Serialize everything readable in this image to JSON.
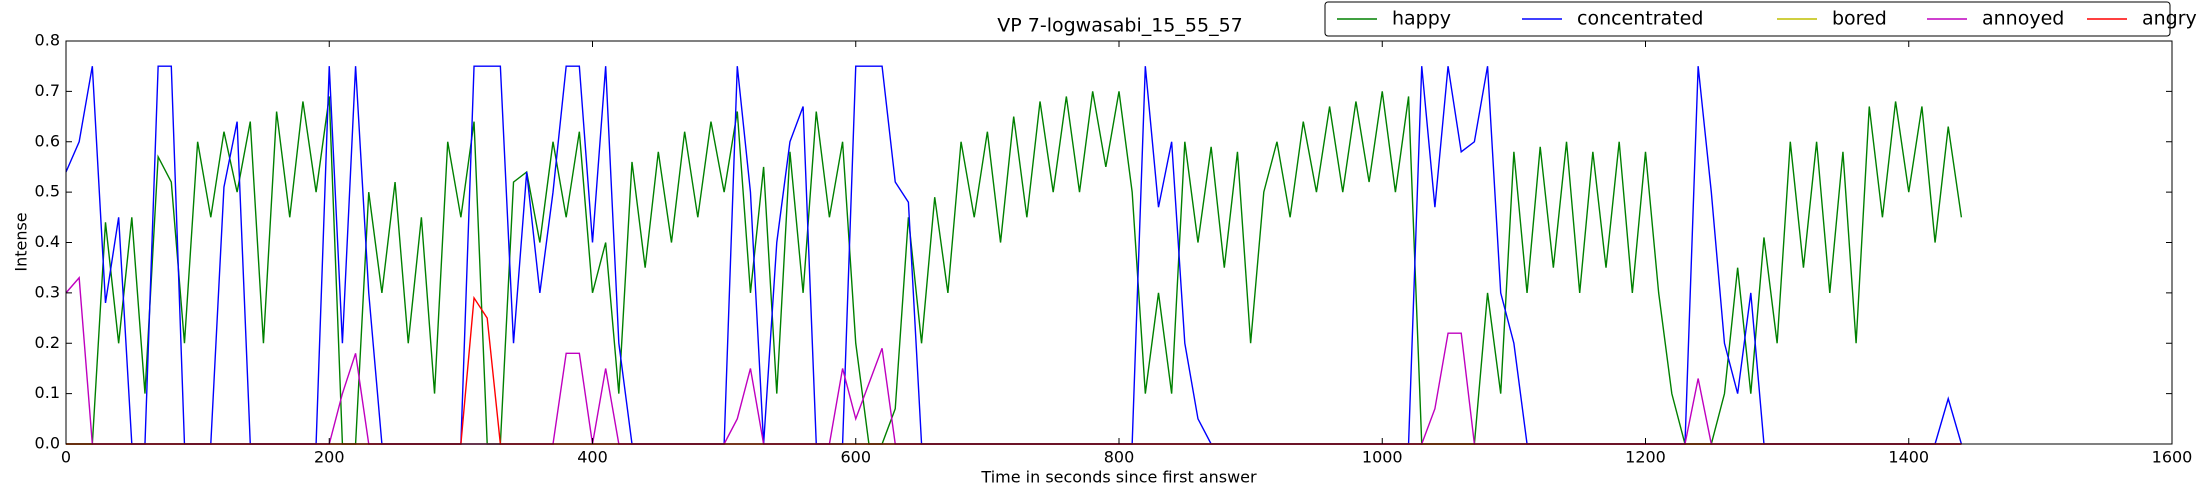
{
  "chart_data": {
    "type": "line",
    "title": "VP 7-logwasabi_15_55_57",
    "x_label": "Time in seconds since first answer",
    "y_label": "Intense",
    "x": [
      0,
      10,
      20,
      30,
      40,
      50,
      60,
      70,
      80,
      90,
      100,
      110,
      120,
      130,
      140,
      150,
      160,
      170,
      180,
      190,
      200,
      210,
      220,
      230,
      240,
      250,
      260,
      270,
      280,
      290,
      300,
      310,
      320,
      330,
      340,
      350,
      360,
      370,
      380,
      390,
      400,
      410,
      420,
      430,
      440,
      450,
      460,
      470,
      480,
      490,
      500,
      510,
      520,
      530,
      540,
      550,
      560,
      570,
      580,
      590,
      600,
      610,
      620,
      630,
      640,
      650,
      660,
      670,
      680,
      690,
      700,
      710,
      720,
      730,
      740,
      750,
      760,
      770,
      780,
      790,
      800,
      810,
      820,
      830,
      840,
      850,
      860,
      870,
      880,
      890,
      900,
      910,
      920,
      930,
      940,
      950,
      960,
      970,
      980,
      990,
      1000,
      1010,
      1020,
      1030,
      1040,
      1050,
      1060,
      1070,
      1080,
      1090,
      1100,
      1110,
      1120,
      1130,
      1140,
      1150,
      1160,
      1170,
      1180,
      1190,
      1200,
      1210,
      1220,
      1230,
      1240,
      1250,
      1260,
      1270,
      1280,
      1290,
      1300,
      1310,
      1320,
      1330,
      1340,
      1350,
      1360,
      1370,
      1380,
      1390,
      1400,
      1410,
      1420,
      1430,
      1440
    ],
    "series": [
      {
        "name": "happy",
        "color": "#008000",
        "values": [
          0,
          0,
          0,
          0.44,
          0.2,
          0.45,
          0.1,
          0.57,
          0.52,
          0.2,
          0.6,
          0.45,
          0.62,
          0.5,
          0.64,
          0.2,
          0.66,
          0.45,
          0.68,
          0.5,
          0.69,
          0,
          0,
          0.5,
          0.3,
          0.52,
          0.2,
          0.45,
          0.1,
          0.6,
          0.45,
          0.64,
          0,
          0,
          0.52,
          0.54,
          0.4,
          0.6,
          0.45,
          0.62,
          0.3,
          0.4,
          0.1,
          0.56,
          0.35,
          0.58,
          0.4,
          0.62,
          0.45,
          0.64,
          0.5,
          0.66,
          0.3,
          0.55,
          0.1,
          0.58,
          0.3,
          0.66,
          0.45,
          0.6,
          0.2,
          0,
          0,
          0.07,
          0.45,
          0.2,
          0.49,
          0.3,
          0.6,
          0.45,
          0.62,
          0.4,
          0.65,
          0.45,
          0.68,
          0.5,
          0.69,
          0.5,
          0.7,
          0.55,
          0.7,
          0.5,
          0.1,
          0.3,
          0.1,
          0.6,
          0.4,
          0.59,
          0.35,
          0.58,
          0.2,
          0.5,
          0.6,
          0.45,
          0.64,
          0.5,
          0.67,
          0.5,
          0.68,
          0.52,
          0.7,
          0.5,
          0.69,
          0,
          0,
          0,
          0,
          0,
          0.3,
          0.1,
          0.58,
          0.3,
          0.59,
          0.35,
          0.6,
          0.3,
          0.58,
          0.35,
          0.6,
          0.3,
          0.58,
          0.3,
          0.1,
          0,
          0,
          0,
          0.1,
          0.35,
          0.1,
          0.41,
          0.2,
          0.6,
          0.35,
          0.6,
          0.3,
          0.58,
          0.2,
          0.67,
          0.45,
          0.68,
          0.5,
          0.67,
          0.4,
          0.63,
          0.45
        ]
      },
      {
        "name": "concentrated",
        "color": "#0000ff",
        "values": [
          0.54,
          0.6,
          0.75,
          0.28,
          0.45,
          0,
          0,
          0.75,
          0.75,
          0,
          0,
          0,
          0.51,
          0.64,
          0,
          0,
          0,
          0,
          0,
          0,
          0.75,
          0.2,
          0.75,
          0.3,
          0,
          0,
          0,
          0,
          0,
          0,
          0,
          0.75,
          0.75,
          0.75,
          0.2,
          0.54,
          0.3,
          0.5,
          0.75,
          0.75,
          0.4,
          0.75,
          0.2,
          0,
          0,
          0,
          0,
          0,
          0,
          0,
          0,
          0.75,
          0.5,
          0,
          0.4,
          0.6,
          0.67,
          0,
          0,
          0,
          0.75,
          0.75,
          0.75,
          0.52,
          0.48,
          0,
          0,
          0,
          0,
          0,
          0,
          0,
          0,
          0,
          0,
          0,
          0,
          0,
          0,
          0,
          0,
          0,
          0.75,
          0.47,
          0.6,
          0.2,
          0.05,
          0,
          0,
          0,
          0,
          0,
          0,
          0,
          0,
          0,
          0,
          0,
          0,
          0,
          0,
          0,
          0,
          0.75,
          0.47,
          0.75,
          0.58,
          0.6,
          0.75,
          0.3,
          0.2,
          0,
          0,
          0,
          0,
          0,
          0,
          0,
          0,
          0,
          0,
          0,
          0,
          0,
          0.75,
          0.5,
          0.2,
          0.1,
          0.3,
          0,
          0,
          0,
          0,
          0,
          0,
          0,
          0,
          0,
          0,
          0,
          0,
          0,
          0,
          0.09,
          0
        ]
      },
      {
        "name": "bored",
        "color": "#bfbf00",
        "values": [
          0,
          0,
          0,
          0,
          0,
          0,
          0,
          0,
          0,
          0,
          0,
          0,
          0,
          0,
          0,
          0,
          0,
          0,
          0,
          0,
          0,
          0,
          0,
          0,
          0,
          0,
          0,
          0,
          0,
          0,
          0,
          0,
          0,
          0,
          0,
          0,
          0,
          0,
          0,
          0,
          0,
          0,
          0,
          0,
          0,
          0,
          0,
          0,
          0,
          0,
          0,
          0,
          0,
          0,
          0,
          0,
          0,
          0,
          0,
          0,
          0,
          0,
          0,
          0,
          0,
          0,
          0,
          0,
          0,
          0,
          0,
          0,
          0,
          0,
          0,
          0,
          0,
          0,
          0,
          0,
          0,
          0,
          0,
          0,
          0,
          0,
          0,
          0,
          0,
          0,
          0,
          0,
          0,
          0,
          0,
          0,
          0,
          0,
          0,
          0,
          0,
          0,
          0,
          0,
          0,
          0,
          0,
          0,
          0,
          0,
          0,
          0,
          0,
          0,
          0,
          0,
          0,
          0,
          0,
          0,
          0,
          0,
          0,
          0,
          0,
          0,
          0,
          0,
          0,
          0,
          0,
          0,
          0,
          0,
          0,
          0,
          0,
          0,
          0,
          0,
          0,
          0,
          0,
          0,
          0
        ]
      },
      {
        "name": "annoyed",
        "color": "#bf00bf",
        "values": [
          0.3,
          0.33,
          0,
          0,
          0,
          0,
          0,
          0,
          0,
          0,
          0,
          0,
          0,
          0,
          0,
          0,
          0,
          0,
          0,
          0,
          0,
          0.1,
          0.18,
          0,
          0,
          0,
          0,
          0,
          0,
          0,
          0,
          0,
          0,
          0,
          0,
          0,
          0,
          0,
          0.18,
          0.18,
          0,
          0.15,
          0,
          0,
          0,
          0,
          0,
          0,
          0,
          0,
          0,
          0.05,
          0.15,
          0,
          0,
          0,
          0,
          0,
          0,
          0.15,
          0.05,
          0.12,
          0.19,
          0,
          0,
          0,
          0,
          0,
          0,
          0,
          0,
          0,
          0,
          0,
          0,
          0,
          0,
          0,
          0,
          0,
          0,
          0,
          0,
          0,
          0,
          0,
          0,
          0,
          0,
          0,
          0,
          0,
          0,
          0,
          0,
          0,
          0,
          0,
          0,
          0,
          0,
          0,
          0,
          0,
          0.07,
          0.22,
          0.22,
          0,
          0,
          0,
          0,
          0,
          0,
          0,
          0,
          0,
          0,
          0,
          0,
          0,
          0,
          0,
          0,
          0,
          0.13,
          0,
          0,
          0,
          0,
          0,
          0,
          0,
          0,
          0,
          0,
          0,
          0,
          0,
          0,
          0,
          0,
          0,
          0,
          0,
          0
        ]
      },
      {
        "name": "angry",
        "color": "#ff0000",
        "values": [
          0,
          0,
          0,
          0,
          0,
          0,
          0,
          0,
          0,
          0,
          0,
          0,
          0,
          0,
          0,
          0,
          0,
          0,
          0,
          0,
          0,
          0,
          0,
          0,
          0,
          0,
          0,
          0,
          0,
          0,
          0,
          0.29,
          0.25,
          0,
          0,
          0,
          0,
          0,
          0,
          0,
          0,
          0,
          0,
          0,
          0,
          0,
          0,
          0,
          0,
          0,
          0,
          0,
          0,
          0,
          0,
          0,
          0,
          0,
          0,
          0,
          0,
          0,
          0,
          0,
          0,
          0,
          0,
          0,
          0,
          0,
          0,
          0,
          0,
          0,
          0,
          0,
          0,
          0,
          0,
          0,
          0,
          0,
          0,
          0,
          0,
          0,
          0,
          0,
          0,
          0,
          0,
          0,
          0,
          0,
          0,
          0,
          0,
          0,
          0,
          0,
          0,
          0,
          0,
          0,
          0,
          0,
          0,
          0,
          0,
          0,
          0,
          0,
          0,
          0,
          0,
          0,
          0,
          0,
          0,
          0,
          0,
          0,
          0,
          0,
          0,
          0,
          0,
          0,
          0,
          0,
          0,
          0,
          0,
          0,
          0,
          0,
          0,
          0,
          0,
          0,
          0,
          0,
          0,
          0,
          0
        ]
      }
    ],
    "xlim": [
      0,
      1600
    ],
    "xticks": [
      0,
      200,
      400,
      600,
      800,
      1000,
      1200,
      1400,
      1600
    ],
    "ylim": [
      0,
      0.8
    ],
    "yticks": [
      {
        "value": 0,
        "label": "0.0"
      },
      0.1,
      0.2,
      0.3,
      0.4,
      0.5,
      0.6,
      0.7,
      0.8
    ],
    "grid": false,
    "legend": "upper right"
  }
}
